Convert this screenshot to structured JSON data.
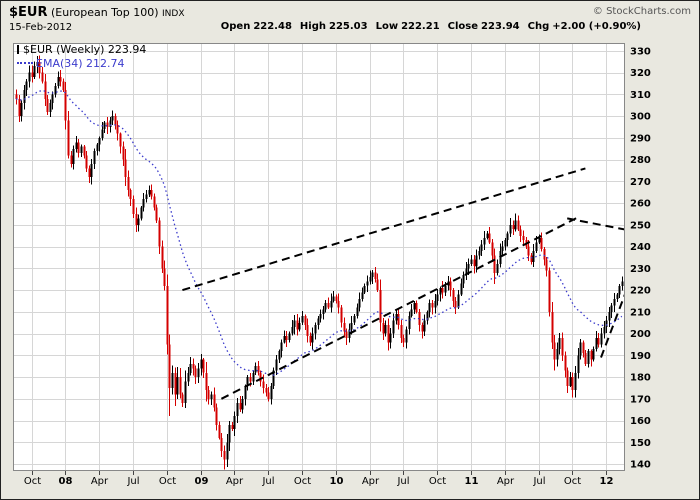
{
  "header": {
    "symbol": "$EUR",
    "name": "(European Top 100)",
    "exchange": "INDX",
    "date": "15-Feb-2012",
    "copyright": "© StockCharts.com",
    "quote": [
      {
        "label": "Open",
        "value": "222.48"
      },
      {
        "label": "High",
        "value": "225.03"
      },
      {
        "label": "Low",
        "value": "222.21"
      },
      {
        "label": "Close",
        "value": "223.94"
      },
      {
        "label": "Chg",
        "value": "+2.00 (+0.90%)"
      }
    ]
  },
  "legend": {
    "main": "$EUR (Weekly) 223.94",
    "ema": "EMA(34) 212.74"
  },
  "chart_data": {
    "type": "candlestick",
    "period": "weekly",
    "title": "$EUR (European Top 100) INDX",
    "y_axis": {
      "min": 140,
      "max": 330,
      "step": 10
    },
    "x_axis": [
      {
        "label": "Oct",
        "week": 6,
        "bold": false
      },
      {
        "label": "08",
        "week": 19,
        "bold": true
      },
      {
        "label": "Apr",
        "week": 32,
        "bold": false
      },
      {
        "label": "Jul",
        "week": 45,
        "bold": false
      },
      {
        "label": "Oct",
        "week": 58,
        "bold": false
      },
      {
        "label": "09",
        "week": 71,
        "bold": true
      },
      {
        "label": "Apr",
        "week": 84,
        "bold": false
      },
      {
        "label": "Jul",
        "week": 97,
        "bold": false
      },
      {
        "label": "Oct",
        "week": 110,
        "bold": false
      },
      {
        "label": "10",
        "week": 123,
        "bold": true
      },
      {
        "label": "Apr",
        "week": 136,
        "bold": false
      },
      {
        "label": "Jul",
        "week": 149,
        "bold": false
      },
      {
        "label": "Oct",
        "week": 162,
        "bold": false
      },
      {
        "label": "11",
        "week": 175,
        "bold": true
      },
      {
        "label": "Apr",
        "week": 188,
        "bold": false
      },
      {
        "label": "Jul",
        "week": 201,
        "bold": false
      },
      {
        "label": "Oct",
        "week": 214,
        "bold": false
      },
      {
        "label": "12",
        "week": 227,
        "bold": true
      }
    ],
    "first_open": 310,
    "closes": [
      308,
      300,
      306,
      312,
      316,
      320,
      318,
      323,
      325,
      320,
      316,
      308,
      302,
      306,
      310,
      314,
      318,
      316,
      312,
      298,
      282,
      278,
      285,
      288,
      283,
      286,
      282,
      276,
      272,
      278,
      284,
      287,
      290,
      294,
      297,
      295,
      298,
      300,
      296,
      292,
      286,
      280,
      272,
      266,
      262,
      255,
      250,
      253,
      258,
      262,
      264,
      266,
      263,
      258,
      252,
      240,
      230,
      222,
      195,
      175,
      182,
      172,
      180,
      172,
      168,
      178,
      182,
      186,
      184,
      180,
      184,
      188,
      182,
      174,
      170,
      172,
      166,
      158,
      152,
      146,
      142,
      150,
      158,
      156,
      162,
      168,
      165,
      170,
      176,
      180,
      178,
      182,
      185,
      182,
      178,
      175,
      173,
      170,
      176,
      183,
      188,
      192,
      196,
      199,
      197,
      200,
      203,
      206,
      202,
      205,
      208,
      204,
      199,
      196,
      200,
      204,
      207,
      209,
      211,
      214,
      212,
      215,
      217,
      215,
      212,
      205,
      201,
      198,
      202,
      205,
      208,
      212,
      216,
      219,
      222,
      224,
      226,
      228,
      225,
      220,
      205,
      200,
      204,
      196,
      200,
      206,
      209,
      204,
      198,
      196,
      202,
      208,
      211,
      214,
      210,
      204,
      201,
      206,
      210,
      214,
      212,
      215,
      218,
      221,
      219,
      222,
      224,
      220,
      215,
      212,
      218,
      223,
      227,
      230,
      232,
      234,
      231,
      236,
      238,
      241,
      244,
      246,
      242,
      236,
      228,
      232,
      238,
      240,
      243,
      246,
      250,
      248,
      252,
      248,
      245,
      243,
      240,
      236,
      233,
      238,
      242,
      244,
      239,
      234,
      229,
      210,
      196,
      188,
      193,
      198,
      190,
      183,
      176,
      180,
      174,
      182,
      190,
      196,
      191,
      186,
      192,
      188,
      193,
      198,
      195,
      200,
      203,
      206,
      210,
      213,
      216,
      218,
      221.94,
      223.94
    ],
    "low_overrides": {
      "59": 162,
      "80": 137.5
    },
    "ema_period": 34,
    "ema_last_value": 212.74,
    "last_close": 223.94,
    "trendlines": [
      {
        "w1": 64,
        "v1": 220,
        "w2": 219,
        "v2": 276
      },
      {
        "w1": 79,
        "v1": 170,
        "w2": 217,
        "v2": 254
      },
      {
        "w1": 212,
        "v1": 253,
        "w2": 238,
        "v2": 247
      },
      {
        "w1": 225,
        "v1": 189,
        "w2": 238,
        "v2": 230
      }
    ],
    "colors": {
      "up": "#000000",
      "down": "#d40000",
      "ema": "#3b3bcc",
      "grid": "#d6d6d6",
      "trend": "#000000",
      "plot_bg": "#ffffff",
      "frame_bg": "#e9e8e0"
    }
  }
}
